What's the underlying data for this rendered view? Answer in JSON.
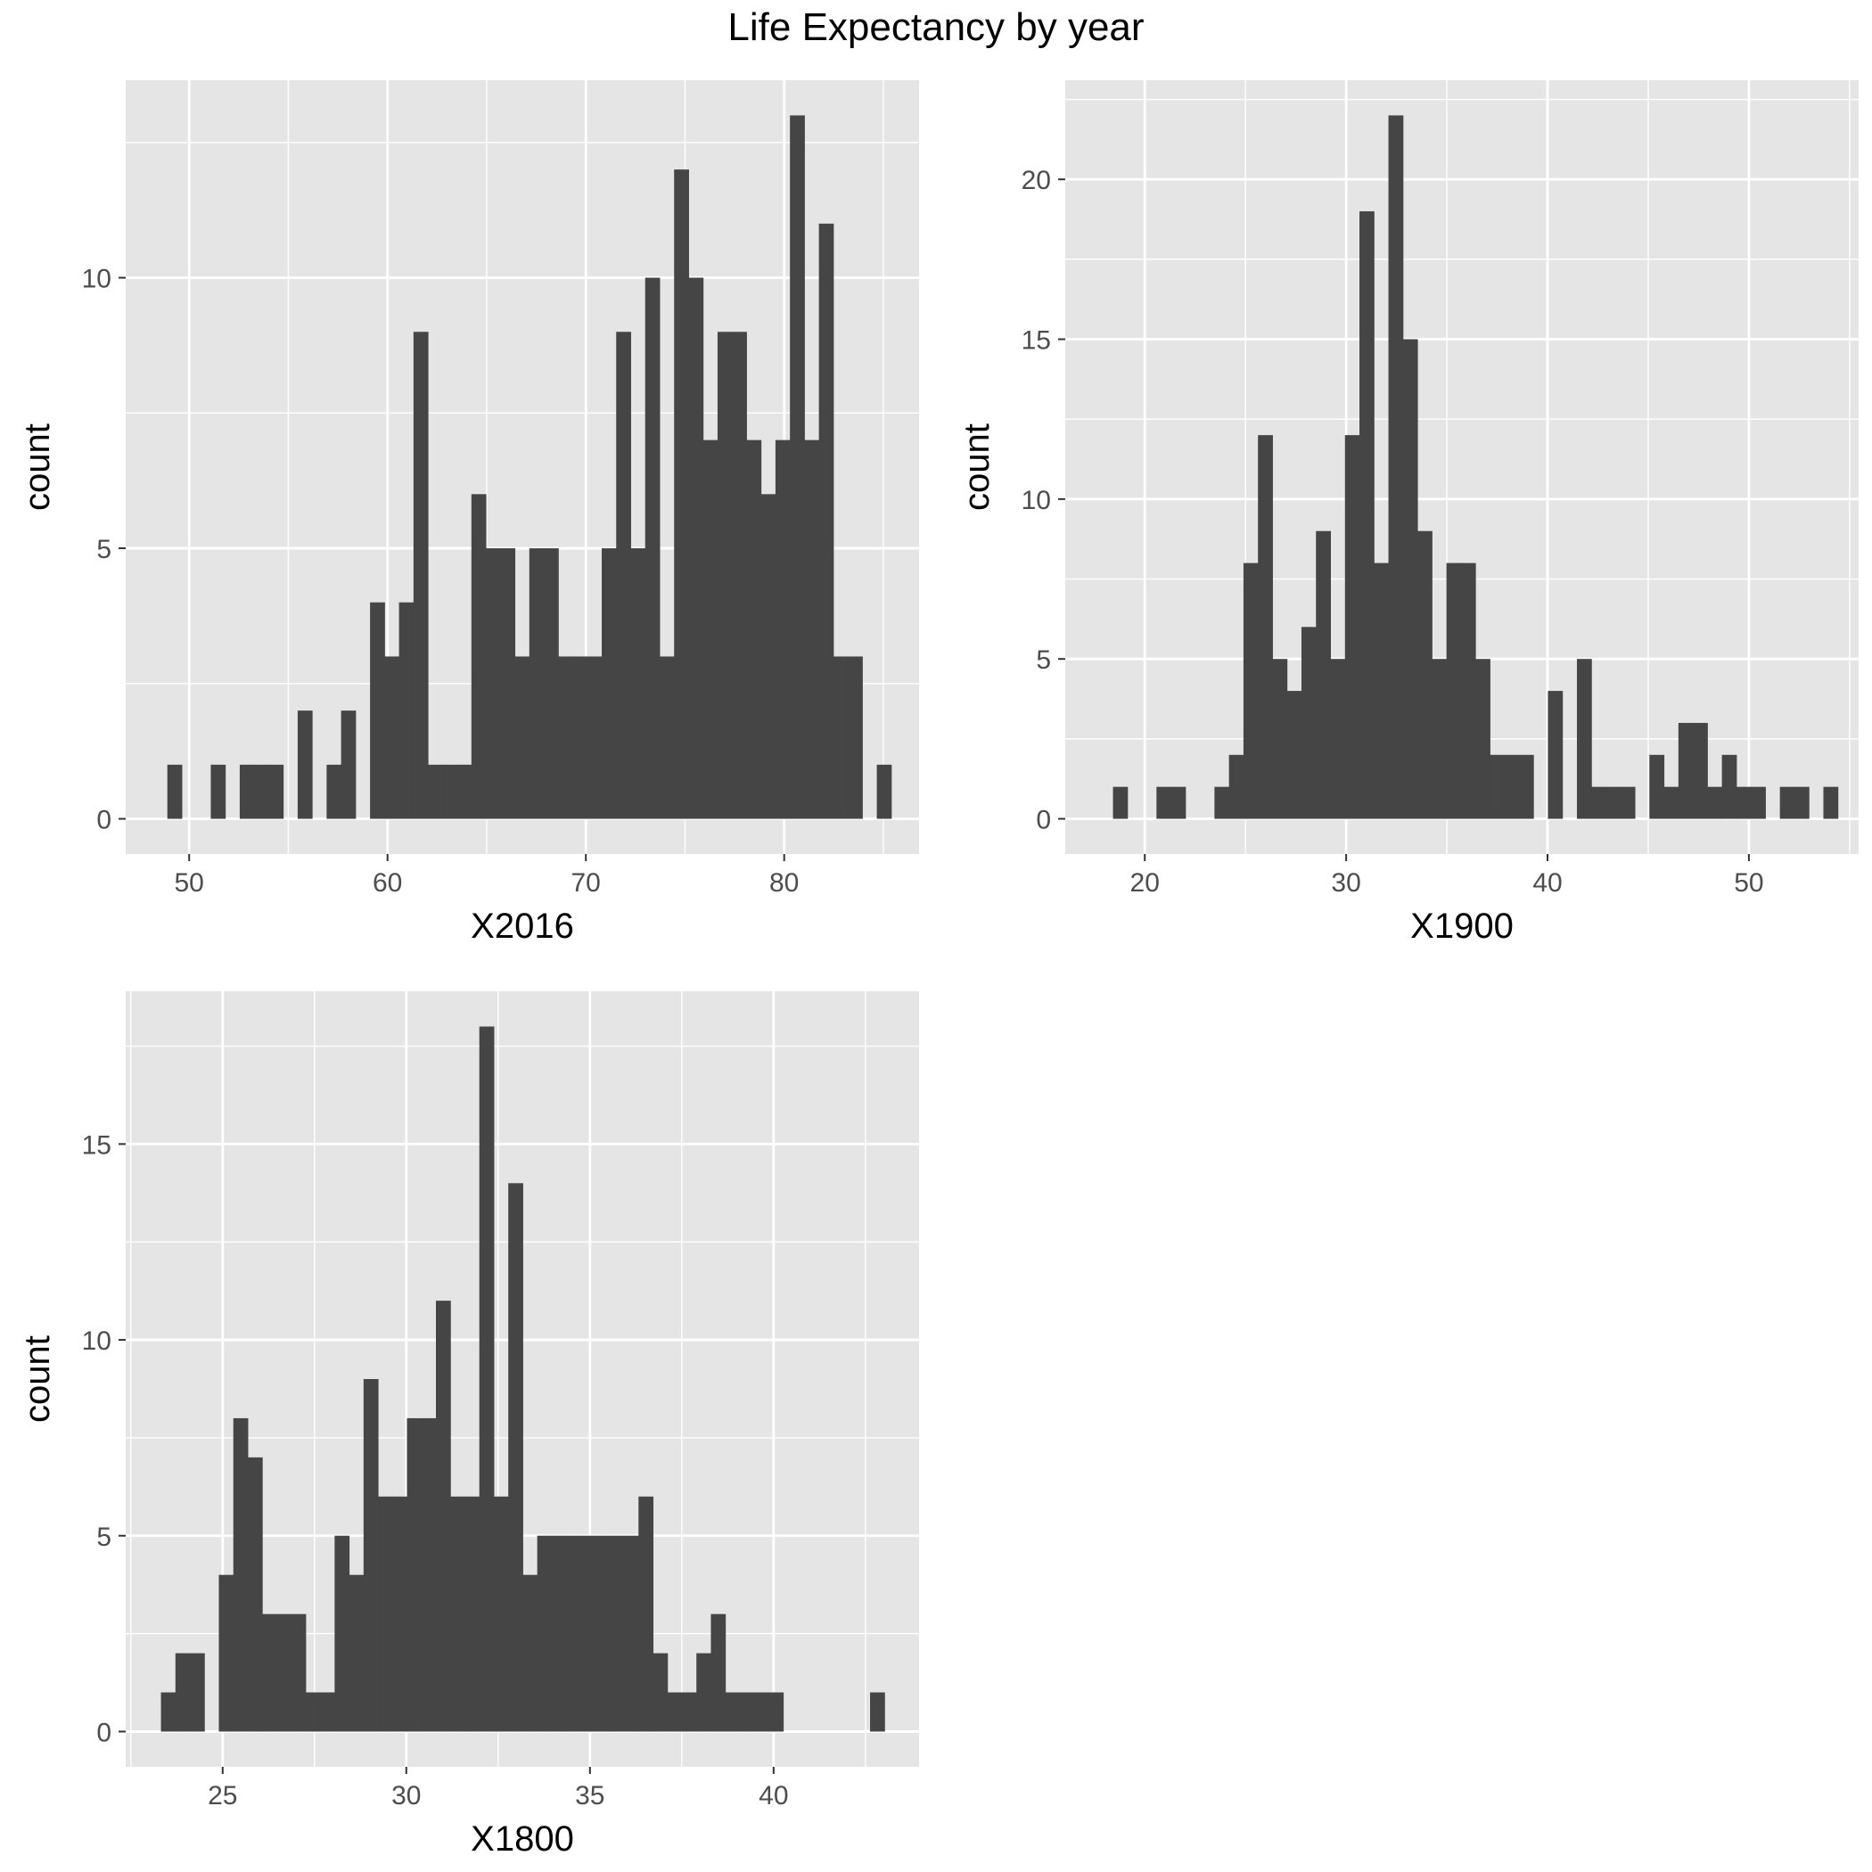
{
  "title": "Life Expectancy by year",
  "colors": {
    "panel_bg": "#e5e5e5",
    "grid": "#ffffff",
    "bar": "#454545",
    "tick": "#333333"
  },
  "chart_data": [
    {
      "type": "bar",
      "subtype": "histogram",
      "xlabel": "X2016",
      "ylabel": "count",
      "xlim": [
        46.8,
        86.8
      ],
      "ylim": [
        -0.65,
        13.65
      ],
      "xticks": [
        "50",
        "60",
        "70",
        "80"
      ],
      "xtick_values": [
        50,
        60,
        70,
        80
      ],
      "yticks": [
        "0",
        "5",
        "10"
      ],
      "ytick_values": [
        0,
        5,
        10
      ],
      "bin_width": 0.73,
      "grid": true,
      "bin_starts": [
        48.9,
        49.63,
        50.36,
        51.09,
        51.82,
        52.55,
        53.28,
        54.01,
        54.74,
        55.47,
        56.2,
        56.93,
        57.66,
        58.39,
        59.12,
        59.85,
        60.58,
        61.31,
        62.04,
        62.77,
        63.5,
        64.23,
        64.96,
        65.69,
        66.42,
        67.15,
        67.88,
        68.61,
        69.34,
        70.07,
        70.8,
        71.53,
        72.26,
        72.99,
        73.72,
        74.45,
        75.18,
        75.91,
        76.64,
        77.37,
        78.1,
        78.83,
        79.56,
        80.29,
        81.02,
        81.75,
        82.48,
        83.21,
        83.94,
        84.67
      ],
      "counts": [
        1,
        0,
        0,
        1,
        0,
        1,
        1,
        1,
        0,
        2,
        0,
        1,
        2,
        0,
        4,
        3,
        4,
        9,
        1,
        1,
        1,
        6,
        5,
        5,
        3,
        5,
        5,
        3,
        3,
        3,
        5,
        9,
        5,
        10,
        3,
        12,
        10,
        7,
        9,
        9,
        7,
        6,
        7,
        13,
        7,
        11,
        3,
        3,
        0,
        1
      ]
    },
    {
      "type": "bar",
      "subtype": "histogram",
      "xlabel": "X1900",
      "ylabel": "count",
      "xlim": [
        16.05,
        55.45
      ],
      "ylim": [
        -1.1,
        23.1
      ],
      "xticks": [
        "20",
        "30",
        "40",
        "50"
      ],
      "xtick_values": [
        20,
        30,
        40,
        50
      ],
      "yticks": [
        "0",
        "5",
        "10",
        "15",
        "20"
      ],
      "ytick_values": [
        0,
        5,
        10,
        15,
        20
      ],
      "bin_width": 0.72,
      "grid": true,
      "bin_starts": [
        18.42,
        19.14,
        19.86,
        20.58,
        21.3,
        22.02,
        22.74,
        23.46,
        24.18,
        24.9,
        25.62,
        26.34,
        27.06,
        27.78,
        28.5,
        29.22,
        29.94,
        30.66,
        31.38,
        32.1,
        32.82,
        33.54,
        34.26,
        34.98,
        35.7,
        36.42,
        37.14,
        37.86,
        38.58,
        39.3,
        40.02,
        40.74,
        41.46,
        42.18,
        42.9,
        43.62,
        44.34,
        45.06,
        45.78,
        46.5,
        47.22,
        47.94,
        48.66,
        49.38,
        50.1,
        50.82,
        51.54,
        52.26,
        52.98,
        53.7
      ],
      "counts": [
        1,
        0,
        0,
        1,
        1,
        0,
        0,
        1,
        2,
        8,
        12,
        5,
        4,
        6,
        9,
        5,
        12,
        19,
        8,
        22,
        15,
        9,
        5,
        8,
        8,
        5,
        2,
        2,
        2,
        0,
        4,
        0,
        5,
        1,
        1,
        1,
        0,
        2,
        1,
        3,
        3,
        1,
        2,
        1,
        1,
        0,
        1,
        1,
        0,
        1
      ]
    },
    {
      "type": "bar",
      "subtype": "histogram",
      "xlabel": "X1800",
      "ylabel": "count",
      "xlim": [
        22.36,
        43.96
      ],
      "ylim": [
        -0.9,
        18.9
      ],
      "xticks": [
        "25",
        "30",
        "35",
        "40"
      ],
      "xtick_values": [
        25,
        30,
        35,
        40
      ],
      "yticks": [
        "0",
        "5",
        "10",
        "15"
      ],
      "ytick_values": [
        0,
        5,
        10,
        15
      ],
      "bin_width": 0.394,
      "grid": true,
      "bin_starts": [
        23.32,
        23.714,
        24.108,
        24.502,
        24.896,
        25.29,
        25.684,
        26.078,
        26.472,
        26.866,
        27.26,
        27.654,
        28.048,
        28.442,
        28.836,
        29.23,
        29.624,
        30.018,
        30.412,
        30.806,
        31.2,
        31.594,
        31.988,
        32.382,
        32.776,
        33.17,
        33.564,
        33.958,
        34.352,
        34.746,
        35.14,
        35.534,
        35.928,
        36.322,
        36.716,
        37.11,
        37.504,
        37.898,
        38.292,
        38.686,
        39.08,
        39.474,
        39.868,
        40.262,
        40.656,
        41.05,
        41.444,
        41.838,
        42.232,
        42.626
      ],
      "counts": [
        1,
        2,
        2,
        0,
        4,
        8,
        7,
        3,
        3,
        3,
        1,
        1,
        5,
        4,
        9,
        6,
        6,
        8,
        8,
        11,
        6,
        6,
        18,
        6,
        14,
        4,
        5,
        5,
        5,
        5,
        5,
        5,
        5,
        6,
        2,
        1,
        1,
        2,
        3,
        1,
        1,
        1,
        1,
        0,
        0,
        0,
        0,
        0,
        0,
        1
      ]
    }
  ]
}
